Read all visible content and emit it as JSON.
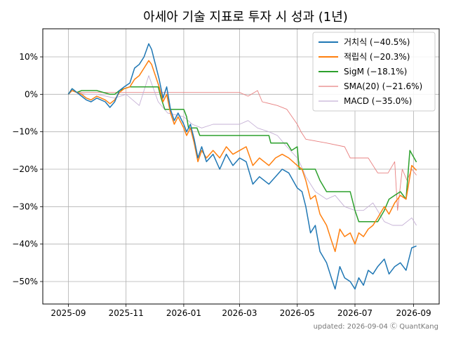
{
  "chart_data": {
    "type": "line",
    "title": "아세아 기술 지표로 투자 시 성과 (1년)",
    "xlabel": "",
    "ylabel": "",
    "x_ticks": [
      "2025-09",
      "2025-11",
      "2026-01",
      "2026-03",
      "2026-05",
      "2026-07",
      "2026-09"
    ],
    "y_ticks": [
      "10%",
      "0%",
      "−10%",
      "−20%",
      "−30%",
      "−40%",
      "−50%"
    ],
    "y_tick_values": [
      10,
      0,
      -10,
      -20,
      -30,
      -40,
      -50
    ],
    "xlim": [
      "2025-08-05",
      "2026-09-28"
    ],
    "ylim": [
      -56,
      17.5
    ],
    "grid": true,
    "legend_position": "top-right",
    "footer": "updated: 2026-09-04 Ⓒ QuantKang",
    "series": [
      {
        "name": "거치식 (−40.5%)",
        "color": "#1f77b4",
        "width": 1.5,
        "points": [
          [
            "2025-09-01",
            0
          ],
          [
            "2025-09-05",
            1.5
          ],
          [
            "2025-09-10",
            0.5
          ],
          [
            "2025-09-15",
            -0.5
          ],
          [
            "2025-09-20",
            -1.5
          ],
          [
            "2025-09-25",
            -2
          ],
          [
            "2025-10-01",
            -1
          ],
          [
            "2025-10-10",
            -2
          ],
          [
            "2025-10-15",
            -3.5
          ],
          [
            "2025-10-20",
            -2
          ],
          [
            "2025-10-25",
            1
          ],
          [
            "2025-10-30",
            2
          ],
          [
            "2025-11-05",
            3
          ],
          [
            "2025-11-10",
            7
          ],
          [
            "2025-11-15",
            8
          ],
          [
            "2025-11-20",
            10
          ],
          [
            "2025-11-25",
            13.5
          ],
          [
            "2025-11-28",
            12
          ],
          [
            "2025-12-02",
            8
          ],
          [
            "2025-12-06",
            4
          ],
          [
            "2025-12-10",
            -1
          ],
          [
            "2025-12-14",
            2
          ],
          [
            "2025-12-18",
            -4
          ],
          [
            "2025-12-22",
            -7
          ],
          [
            "2025-12-26",
            -5
          ],
          [
            "2026-01-01",
            -8
          ],
          [
            "2026-01-04",
            -10
          ],
          [
            "2026-01-08",
            -8
          ],
          [
            "2026-01-12",
            -12
          ],
          [
            "2026-01-16",
            -17
          ],
          [
            "2026-01-20",
            -14
          ],
          [
            "2026-01-25",
            -18
          ],
          [
            "2026-02-01",
            -16
          ],
          [
            "2026-02-08",
            -20
          ],
          [
            "2026-02-15",
            -16
          ],
          [
            "2026-02-22",
            -19
          ],
          [
            "2026-03-01",
            -17
          ],
          [
            "2026-03-08",
            -18
          ],
          [
            "2026-03-15",
            -24
          ],
          [
            "2026-03-22",
            -22
          ],
          [
            "2026-04-01",
            -24
          ],
          [
            "2026-04-08",
            -22
          ],
          [
            "2026-04-15",
            -20
          ],
          [
            "2026-04-22",
            -21
          ],
          [
            "2026-05-01",
            -25
          ],
          [
            "2026-05-06",
            -26
          ],
          [
            "2026-05-10",
            -30
          ],
          [
            "2026-05-15",
            -37
          ],
          [
            "2026-05-20",
            -35
          ],
          [
            "2026-05-25",
            -42
          ],
          [
            "2026-06-01",
            -45
          ],
          [
            "2026-06-06",
            -49
          ],
          [
            "2026-06-10",
            -52
          ],
          [
            "2026-06-15",
            -46
          ],
          [
            "2026-06-20",
            -49
          ],
          [
            "2026-06-26",
            -50
          ],
          [
            "2026-07-01",
            -52
          ],
          [
            "2026-07-05",
            -49
          ],
          [
            "2026-07-10",
            -51
          ],
          [
            "2026-07-15",
            -47
          ],
          [
            "2026-07-20",
            -48
          ],
          [
            "2026-07-25",
            -46
          ],
          [
            "2026-08-01",
            -44
          ],
          [
            "2026-08-06",
            -48
          ],
          [
            "2026-08-12",
            -46
          ],
          [
            "2026-08-18",
            -45
          ],
          [
            "2026-08-24",
            -47
          ],
          [
            "2026-08-30",
            -41
          ],
          [
            "2026-09-04",
            -40.5
          ]
        ]
      },
      {
        "name": "적립식 (−20.3%)",
        "color": "#ff7f0e",
        "width": 1.5,
        "points": [
          [
            "2025-09-01",
            0
          ],
          [
            "2025-09-05",
            1
          ],
          [
            "2025-09-10",
            0.5
          ],
          [
            "2025-09-15",
            0
          ],
          [
            "2025-09-20",
            -1
          ],
          [
            "2025-09-25",
            -1.5
          ],
          [
            "2025-10-01",
            -0.5
          ],
          [
            "2025-10-10",
            -1.5
          ],
          [
            "2025-10-15",
            -2.5
          ],
          [
            "2025-10-20",
            -1.5
          ],
          [
            "2025-10-25",
            0.5
          ],
          [
            "2025-10-30",
            1.5
          ],
          [
            "2025-11-05",
            2
          ],
          [
            "2025-11-10",
            4
          ],
          [
            "2025-11-15",
            5
          ],
          [
            "2025-11-20",
            7
          ],
          [
            "2025-11-25",
            9
          ],
          [
            "2025-11-28",
            8
          ],
          [
            "2025-12-02",
            5
          ],
          [
            "2025-12-06",
            2
          ],
          [
            "2025-12-10",
            -2
          ],
          [
            "2025-12-14",
            0
          ],
          [
            "2025-12-18",
            -5
          ],
          [
            "2025-12-22",
            -8
          ],
          [
            "2025-12-26",
            -6
          ],
          [
            "2026-01-01",
            -9
          ],
          [
            "2026-01-04",
            -11
          ],
          [
            "2026-01-08",
            -9
          ],
          [
            "2026-01-12",
            -13
          ],
          [
            "2026-01-16",
            -18
          ],
          [
            "2026-01-20",
            -15
          ],
          [
            "2026-01-25",
            -17
          ],
          [
            "2026-02-01",
            -15
          ],
          [
            "2026-02-08",
            -17
          ],
          [
            "2026-02-15",
            -14
          ],
          [
            "2026-02-22",
            -16
          ],
          [
            "2026-03-01",
            -15
          ],
          [
            "2026-03-08",
            -14
          ],
          [
            "2026-03-15",
            -19
          ],
          [
            "2026-03-22",
            -17
          ],
          [
            "2026-04-01",
            -19
          ],
          [
            "2026-04-08",
            -17
          ],
          [
            "2026-04-15",
            -16
          ],
          [
            "2026-04-22",
            -17
          ],
          [
            "2026-05-01",
            -19
          ],
          [
            "2026-05-06",
            -20
          ],
          [
            "2026-05-10",
            -23
          ],
          [
            "2026-05-15",
            -28
          ],
          [
            "2026-05-20",
            -27
          ],
          [
            "2026-05-25",
            -32
          ],
          [
            "2026-06-01",
            -35
          ],
          [
            "2026-06-06",
            -39
          ],
          [
            "2026-06-10",
            -42
          ],
          [
            "2026-06-15",
            -36
          ],
          [
            "2026-06-20",
            -38
          ],
          [
            "2026-06-26",
            -37
          ],
          [
            "2026-07-01",
            -40
          ],
          [
            "2026-07-05",
            -37
          ],
          [
            "2026-07-10",
            -38
          ],
          [
            "2026-07-15",
            -36
          ],
          [
            "2026-07-20",
            -35
          ],
          [
            "2026-07-25",
            -33
          ],
          [
            "2026-08-01",
            -30
          ],
          [
            "2026-08-06",
            -32
          ],
          [
            "2026-08-12",
            -29
          ],
          [
            "2026-08-18",
            -27
          ],
          [
            "2026-08-24",
            -28
          ],
          [
            "2026-08-30",
            -19
          ],
          [
            "2026-09-04",
            -20.3
          ]
        ]
      },
      {
        "name": "SigM (−18.1%)",
        "color": "#2ca02c",
        "width": 1.5,
        "points": [
          [
            "2025-09-01",
            0
          ],
          [
            "2025-09-05",
            1.5
          ],
          [
            "2025-09-10",
            0.5
          ],
          [
            "2025-09-15",
            1
          ],
          [
            "2025-09-20",
            1
          ],
          [
            "2025-10-01",
            1
          ],
          [
            "2025-10-15",
            0
          ],
          [
            "2025-10-20",
            0
          ],
          [
            "2025-10-25",
            1
          ],
          [
            "2025-10-30",
            1.5
          ],
          [
            "2025-11-05",
            2
          ],
          [
            "2025-11-10",
            2
          ],
          [
            "2025-11-20",
            2
          ],
          [
            "2025-12-05",
            2
          ],
          [
            "2025-12-08",
            -1
          ],
          [
            "2025-12-12",
            -4
          ],
          [
            "2026-01-01",
            -4
          ],
          [
            "2026-01-04",
            -6
          ],
          [
            "2026-01-06",
            -9
          ],
          [
            "2026-01-15",
            -9
          ],
          [
            "2026-01-18",
            -11
          ],
          [
            "2026-02-15",
            -11
          ],
          [
            "2026-03-15",
            -11
          ],
          [
            "2026-04-01",
            -11
          ],
          [
            "2026-04-03",
            -13
          ],
          [
            "2026-04-20",
            -13
          ],
          [
            "2026-04-25",
            -15
          ],
          [
            "2026-05-01",
            -14
          ],
          [
            "2026-05-03",
            -20
          ],
          [
            "2026-05-20",
            -20
          ],
          [
            "2026-05-25",
            -23
          ],
          [
            "2026-06-01",
            -26
          ],
          [
            "2026-06-26",
            -26
          ],
          [
            "2026-07-01",
            -31
          ],
          [
            "2026-07-05",
            -34
          ],
          [
            "2026-07-20",
            -34
          ],
          [
            "2026-07-25",
            -34
          ],
          [
            "2026-08-01",
            -31
          ],
          [
            "2026-08-06",
            -28
          ],
          [
            "2026-08-12",
            -27
          ],
          [
            "2026-08-18",
            -26
          ],
          [
            "2026-08-24",
            -28
          ],
          [
            "2026-08-28",
            -15
          ],
          [
            "2026-09-04",
            -18.1
          ]
        ]
      },
      {
        "name": "SMA(20) (−21.6%)",
        "color": "#e88080",
        "width": 0.9,
        "points": [
          [
            "2025-09-01",
            0
          ],
          [
            "2025-09-05",
            1
          ],
          [
            "2025-09-10",
            0.5
          ],
          [
            "2025-09-20",
            0.5
          ],
          [
            "2025-10-01",
            0.5
          ],
          [
            "2025-10-25",
            0.5
          ],
          [
            "2025-11-05",
            0.5
          ],
          [
            "2025-11-25",
            0.5
          ],
          [
            "2025-12-05",
            0.5
          ],
          [
            "2025-12-20",
            0.5
          ],
          [
            "2026-01-10",
            0.5
          ],
          [
            "2026-02-01",
            0.5
          ],
          [
            "2026-02-15",
            0.5
          ],
          [
            "2026-03-01",
            0.5
          ],
          [
            "2026-03-10",
            -0.5
          ],
          [
            "2026-03-20",
            1
          ],
          [
            "2026-03-25",
            -2
          ],
          [
            "2026-04-10",
            -3
          ],
          [
            "2026-04-20",
            -4
          ],
          [
            "2026-05-01",
            -8
          ],
          [
            "2026-05-05",
            -10
          ],
          [
            "2026-05-10",
            -12
          ],
          [
            "2026-06-01",
            -13
          ],
          [
            "2026-06-20",
            -14
          ],
          [
            "2026-06-26",
            -17
          ],
          [
            "2026-07-15",
            -17
          ],
          [
            "2026-07-25",
            -21
          ],
          [
            "2026-08-05",
            -21
          ],
          [
            "2026-08-12",
            -18
          ],
          [
            "2026-08-15",
            -31
          ],
          [
            "2026-08-20",
            -20
          ],
          [
            "2026-08-25",
            -23
          ],
          [
            "2026-08-30",
            -20
          ],
          [
            "2026-09-04",
            -21.6
          ]
        ]
      },
      {
        "name": "MACD (−35.0%)",
        "color": "#c5b0d5",
        "width": 0.9,
        "points": [
          [
            "2025-09-01",
            0
          ],
          [
            "2025-09-05",
            1
          ],
          [
            "2025-09-10",
            0.5
          ],
          [
            "2025-09-20",
            0
          ],
          [
            "2025-10-01",
            0
          ],
          [
            "2025-10-20",
            -1
          ],
          [
            "2025-11-01",
            0
          ],
          [
            "2025-11-15",
            -3
          ],
          [
            "2025-11-25",
            5
          ],
          [
            "2025-12-05",
            -2
          ],
          [
            "2025-12-15",
            -5
          ],
          [
            "2026-01-01",
            -6
          ],
          [
            "2026-01-10",
            -8
          ],
          [
            "2026-01-20",
            -9
          ],
          [
            "2026-02-01",
            -8
          ],
          [
            "2026-02-15",
            -8
          ],
          [
            "2026-03-01",
            -8
          ],
          [
            "2026-03-10",
            -7
          ],
          [
            "2026-03-20",
            -9
          ],
          [
            "2026-04-01",
            -10
          ],
          [
            "2026-04-10",
            -11
          ],
          [
            "2026-04-20",
            -14
          ],
          [
            "2026-05-01",
            -17
          ],
          [
            "2026-05-05",
            -19
          ],
          [
            "2026-05-10",
            -22
          ],
          [
            "2026-05-20",
            -26
          ],
          [
            "2026-06-01",
            -28
          ],
          [
            "2026-06-10",
            -27
          ],
          [
            "2026-06-20",
            -30
          ],
          [
            "2026-07-01",
            -31
          ],
          [
            "2026-07-10",
            -31
          ],
          [
            "2026-07-20",
            -29
          ],
          [
            "2026-08-01",
            -34
          ],
          [
            "2026-08-10",
            -35
          ],
          [
            "2026-08-20",
            -35
          ],
          [
            "2026-08-30",
            -33
          ],
          [
            "2026-09-04",
            -35.0
          ]
        ]
      }
    ]
  }
}
